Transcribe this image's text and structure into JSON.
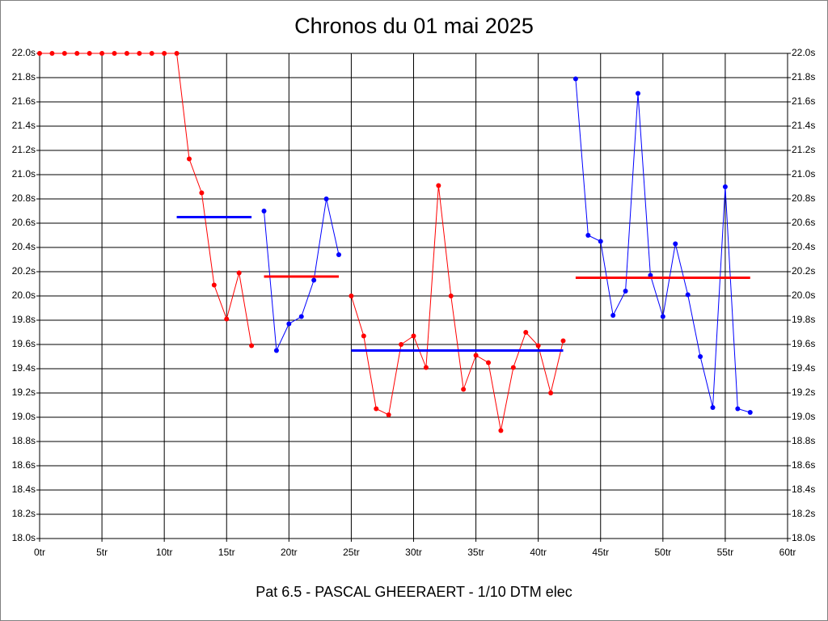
{
  "chart_data": {
    "type": "line",
    "title": "Chronos du 01 mai 2025",
    "subtitle": "Pat 6.5 - PASCAL GHEERAERT - 1/10 DTM elec",
    "xlim": [
      0,
      60
    ],
    "xticks": [
      {
        "value": 0,
        "label": "0tr"
      },
      {
        "value": 5,
        "label": "5tr"
      },
      {
        "value": 10,
        "label": "10tr"
      },
      {
        "value": 15,
        "label": "15tr"
      },
      {
        "value": 20,
        "label": "20tr"
      },
      {
        "value": 25,
        "label": "25tr"
      },
      {
        "value": 30,
        "label": "30tr"
      },
      {
        "value": 35,
        "label": "35tr"
      },
      {
        "value": 40,
        "label": "40tr"
      },
      {
        "value": 45,
        "label": "45tr"
      },
      {
        "value": 50,
        "label": "50tr"
      },
      {
        "value": 55,
        "label": "55tr"
      },
      {
        "value": 60,
        "label": "60tr"
      }
    ],
    "ylim": [
      18.0,
      22.0
    ],
    "yticks": [
      {
        "value": 18.0,
        "label": "18.0s"
      },
      {
        "value": 18.2,
        "label": "18.2s"
      },
      {
        "value": 18.4,
        "label": "18.4s"
      },
      {
        "value": 18.6,
        "label": "18.6s"
      },
      {
        "value": 18.8,
        "label": "18.8s"
      },
      {
        "value": 19.0,
        "label": "19.0s"
      },
      {
        "value": 19.2,
        "label": "19.2s"
      },
      {
        "value": 19.4,
        "label": "19.4s"
      },
      {
        "value": 19.6,
        "label": "19.6s"
      },
      {
        "value": 19.8,
        "label": "19.8s"
      },
      {
        "value": 20.0,
        "label": "20.0s"
      },
      {
        "value": 20.2,
        "label": "20.2s"
      },
      {
        "value": 20.4,
        "label": "20.4s"
      },
      {
        "value": 20.6,
        "label": "20.6s"
      },
      {
        "value": 20.8,
        "label": "20.8s"
      },
      {
        "value": 21.0,
        "label": "21.0s"
      },
      {
        "value": 21.2,
        "label": "21.2s"
      },
      {
        "value": 21.4,
        "label": "21.4s"
      },
      {
        "value": 21.6,
        "label": "21.6s"
      },
      {
        "value": 21.8,
        "label": "21.8s"
      },
      {
        "value": 22.0,
        "label": "22.0s"
      }
    ],
    "grid": true,
    "series": [
      {
        "color": "#ff0000",
        "x": [
          0,
          1,
          2,
          3,
          4,
          5,
          6,
          7,
          8,
          9,
          10,
          11,
          12,
          13,
          14,
          15,
          16,
          17
        ],
        "values": [
          22.0,
          22.0,
          22.0,
          22.0,
          22.0,
          22.0,
          22.0,
          22.0,
          22.0,
          22.0,
          22.0,
          22.0,
          21.13,
          20.85,
          20.09,
          19.81,
          20.19,
          19.59
        ]
      },
      {
        "color": "#0000ff",
        "x": [
          18,
          19,
          20,
          21,
          22,
          23,
          24
        ],
        "values": [
          20.7,
          19.55,
          19.77,
          19.83,
          20.13,
          20.8,
          20.34
        ]
      },
      {
        "color": "#ff0000",
        "x": [
          25,
          26,
          27,
          28,
          29,
          30,
          31,
          32,
          33,
          34,
          35,
          36,
          37,
          38,
          39,
          40,
          41,
          42
        ],
        "values": [
          20.0,
          19.67,
          19.07,
          19.02,
          19.6,
          19.67,
          19.41,
          20.91,
          20.0,
          19.23,
          19.51,
          19.45,
          18.89,
          19.41,
          19.7,
          19.59,
          19.2,
          19.63
        ]
      },
      {
        "color": "#0000ff",
        "x": [
          43,
          44,
          45,
          46,
          47,
          48,
          49,
          50,
          51,
          52,
          53,
          54,
          55,
          56,
          57
        ],
        "values": [
          21.79,
          20.5,
          20.45,
          19.84,
          20.04,
          21.67,
          20.17,
          19.83,
          20.43,
          20.01,
          19.5,
          19.08,
          20.9,
          19.07,
          19.04
        ]
      }
    ],
    "mean_lines": [
      {
        "color": "#0000ff",
        "value": 20.65,
        "x_range": [
          11,
          17
        ]
      },
      {
        "color": "#ff0000",
        "value": 20.16,
        "x_range": [
          18,
          24
        ]
      },
      {
        "color": "#0000ff",
        "value": 19.55,
        "x_range": [
          25,
          42
        ]
      },
      {
        "color": "#ff0000",
        "value": 20.15,
        "x_range": [
          43,
          57
        ]
      }
    ]
  }
}
